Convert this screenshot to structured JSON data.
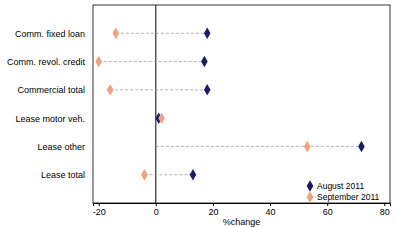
{
  "chart_data": {
    "type": "dot",
    "orientation": "horizontal",
    "categories": [
      "Comm. fixed loan",
      "Comm. revol. credit",
      "Commercial total",
      "Lease motor veh.",
      "Lease other",
      "Lease total"
    ],
    "series": [
      {
        "name": "August 2011",
        "color": "#1b1b6b",
        "marker": "diamond",
        "values": [
          18,
          17,
          18,
          1,
          72,
          13
        ]
      },
      {
        "name": "September 2011",
        "color": "#f5a07a",
        "marker": "diamond",
        "values": [
          -14,
          -20,
          -16,
          2,
          53,
          -4
        ]
      }
    ],
    "xlabel": "%change",
    "xlim": [
      -22,
      82
    ],
    "xticks": [
      -20,
      0,
      20,
      40,
      60,
      80
    ],
    "legend": "bottom-right"
  }
}
